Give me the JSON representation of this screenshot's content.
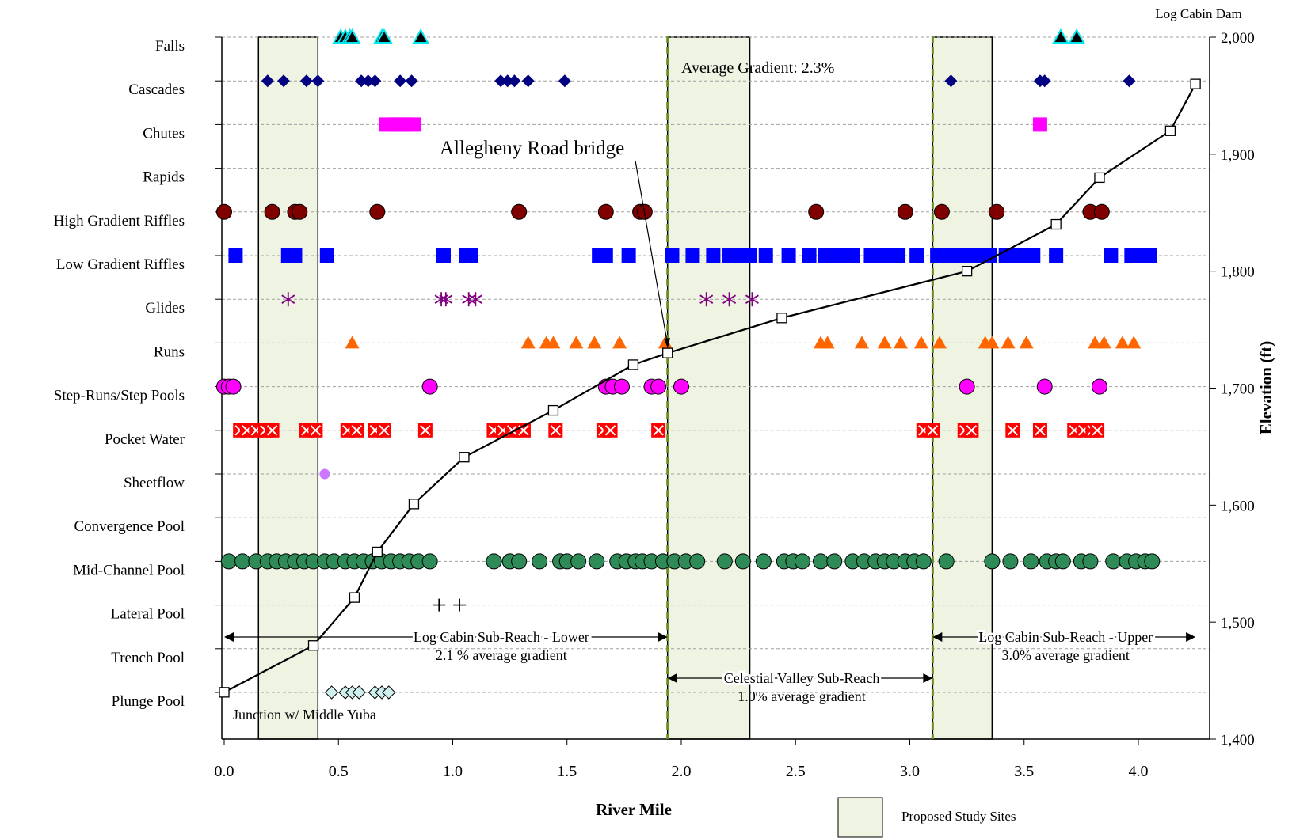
{
  "chart_data": {
    "type": "scatter",
    "xlabel": "River Mile",
    "ylabel": "Elevation (ft)",
    "xlim": [
      0,
      4.3
    ],
    "ylim": [
      1400,
      2000
    ],
    "x_ticks": [
      "0.0",
      "0.5",
      "1.0",
      "1.5",
      "2.0",
      "2.5",
      "3.0",
      "3.5",
      "4.0"
    ],
    "y_ticks": [
      "1,400",
      "1,500",
      "1,600",
      "1,700",
      "1,800",
      "1,900",
      "2,000"
    ],
    "categories": [
      "Falls",
      "Cascades",
      "Chutes",
      "Rapids",
      "High Gradient Riffles",
      "Low Gradient Riffles",
      "Glides",
      "Runs",
      "Step-Runs/Step Pools",
      "Pocket Water",
      "Sheetflow",
      "Convergence Pool",
      "Mid-Channel Pool",
      "Lateral Pool",
      "Trench Pool",
      "Plunge Pool"
    ],
    "grid": "horizontal dashed",
    "elevation_profile": {
      "name": "Elevation",
      "x": [
        0.0,
        0.39,
        0.57,
        0.67,
        0.83,
        1.05,
        1.44,
        1.79,
        1.94,
        2.44,
        3.25,
        3.64,
        3.83,
        4.14,
        4.25
      ],
      "y": [
        1440,
        1480,
        1521,
        1560,
        1601,
        1641,
        1681,
        1720,
        1730,
        1760,
        1800,
        1840,
        1880,
        1920,
        1960
      ]
    },
    "habitat_series": [
      {
        "name": "Falls",
        "row": 0,
        "marker": "triangle",
        "color": "#000000",
        "stroke": "#00e5ee",
        "x": [
          0.51,
          0.53,
          0.55,
          0.56,
          0.69,
          0.7,
          0.86,
          3.66,
          3.73
        ]
      },
      {
        "name": "Cascades",
        "row": 1,
        "marker": "diamond",
        "color": "#000080",
        "x": [
          0.19,
          0.26,
          0.36,
          0.41,
          0.6,
          0.63,
          0.66,
          0.77,
          0.82,
          1.21,
          1.24,
          1.27,
          1.33,
          1.49,
          3.18,
          3.57,
          3.59,
          3.96
        ]
      },
      {
        "name": "Chutes",
        "row": 2,
        "marker": "square",
        "color": "#ff00ff",
        "x": [
          0.71,
          0.74,
          0.77,
          0.8,
          0.83,
          3.57
        ]
      },
      {
        "name": "High Gradient Riffles",
        "row": 4,
        "marker": "circle",
        "color": "#800000",
        "x": [
          0.0,
          0.21,
          0.31,
          0.33,
          0.67,
          1.29,
          1.67,
          1.82,
          1.84,
          2.59,
          2.98,
          3.14,
          3.38,
          3.79,
          3.84
        ]
      },
      {
        "name": "Low Gradient Riffles",
        "row": 5,
        "marker": "square",
        "color": "#0000ff",
        "x": [
          0.05,
          0.28,
          0.31,
          0.45,
          0.96,
          1.06,
          1.08,
          1.64,
          1.67,
          1.77,
          1.96,
          2.05,
          2.14,
          2.21,
          2.26,
          2.3,
          2.37,
          2.47,
          2.56,
          2.63,
          2.69,
          2.75,
          2.83,
          2.89,
          2.95,
          3.03,
          3.12,
          3.18,
          3.23,
          3.27,
          3.3,
          3.35,
          3.42,
          3.48,
          3.51,
          3.54,
          3.64,
          3.88,
          3.97,
          3.99,
          4.03,
          4.05
        ]
      },
      {
        "name": "Glides",
        "row": 6,
        "marker": "asterisk",
        "color": "#800080",
        "x": [
          0.28,
          0.95,
          0.97,
          1.07,
          1.1,
          2.11,
          2.21,
          2.31
        ]
      },
      {
        "name": "Runs",
        "row": 7,
        "marker": "triangle",
        "color": "#ff6600",
        "x": [
          0.56,
          1.33,
          1.41,
          1.44,
          1.54,
          1.62,
          1.73,
          1.93,
          2.61,
          2.64,
          2.79,
          2.89,
          2.96,
          3.05,
          3.13,
          3.33,
          3.36,
          3.43,
          3.51,
          3.81,
          3.85,
          3.93,
          3.98
        ]
      },
      {
        "name": "Step-Runs/Step Pools",
        "row": 8,
        "marker": "circle",
        "color": "#ff00ff",
        "x": [
          0.0,
          0.02,
          0.04,
          0.9,
          1.67,
          1.7,
          1.74,
          1.87,
          1.9,
          2.0,
          3.25,
          3.59,
          3.83
        ]
      },
      {
        "name": "Pocket Water",
        "row": 9,
        "marker": "xbox",
        "color": "#ff0000",
        "x": [
          0.07,
          0.1,
          0.14,
          0.18,
          0.21,
          0.36,
          0.4,
          0.54,
          0.58,
          0.66,
          0.7,
          0.88,
          1.18,
          1.22,
          1.26,
          1.31,
          1.45,
          1.66,
          1.69,
          1.9,
          3.06,
          3.1,
          3.24,
          3.27,
          3.45,
          3.57,
          3.72,
          3.76,
          3.8,
          3.82
        ]
      },
      {
        "name": "Sheetflow",
        "row": 10,
        "marker": "circle-small",
        "color": "#cc77ff",
        "x": [
          0.44
        ]
      },
      {
        "name": "Mid-Channel Pool",
        "row": 12,
        "marker": "circle",
        "color": "#2e8b57",
        "x": [
          0.02,
          0.08,
          0.14,
          0.19,
          0.23,
          0.27,
          0.31,
          0.35,
          0.39,
          0.44,
          0.48,
          0.53,
          0.57,
          0.61,
          0.65,
          0.69,
          0.73,
          0.77,
          0.81,
          0.85,
          0.9,
          1.18,
          1.25,
          1.29,
          1.38,
          1.47,
          1.5,
          1.55,
          1.63,
          1.72,
          1.76,
          1.8,
          1.83,
          1.87,
          1.92,
          1.97,
          2.02,
          2.07,
          2.19,
          2.27,
          2.36,
          2.45,
          2.49,
          2.53,
          2.61,
          2.67,
          2.75,
          2.8,
          2.85,
          2.89,
          2.93,
          2.98,
          3.02,
          3.06,
          3.16,
          3.36,
          3.44,
          3.53,
          3.6,
          3.64,
          3.67,
          3.75,
          3.79,
          3.89,
          3.95,
          3.99,
          4.03,
          4.06
        ]
      },
      {
        "name": "Lateral Pool",
        "row": 13,
        "marker": "plus",
        "color": "#000000",
        "x": [
          0.94,
          1.03
        ]
      },
      {
        "name": "Plunge Pool",
        "row": 15,
        "marker": "diamond-open",
        "color": "#cfefef",
        "x": [
          0.47,
          0.53,
          0.56,
          0.59,
          0.66,
          0.69,
          0.72
        ]
      }
    ],
    "study_sites": {
      "name": "Proposed Study Sites",
      "color": "#eef3e2",
      "ranges": [
        [
          0.15,
          0.41
        ],
        [
          1.94,
          2.3
        ],
        [
          3.1,
          3.36
        ]
      ]
    },
    "sub_reach_boundaries": [
      1.94,
      3.1
    ],
    "sub_reaches": [
      {
        "label": "Log Cabin Sub-Reach - Lower",
        "gradient": "2.1 % average gradient",
        "x_start": 0.0,
        "x_end": 1.94
      },
      {
        "label": "Celestial Valley Sub-Reach",
        "gradient": "1.0% average gradient",
        "x_start": 1.94,
        "x_end": 3.1
      },
      {
        "label": "Log Cabin Sub-Reach - Upper",
        "gradient": "3.0% average gradient",
        "x_start": 3.1,
        "x_end": 4.25
      }
    ],
    "annotations": {
      "average_gradient": "Average Gradient:  2.3%",
      "bridge": "Allegheny Road bridge",
      "bridge_mile": 1.94,
      "junction": "Junction w/ Middle Yuba",
      "dam": "Log Cabin Dam"
    },
    "legend": {
      "label": "Proposed Study Sites",
      "position": "bottom-center"
    }
  }
}
